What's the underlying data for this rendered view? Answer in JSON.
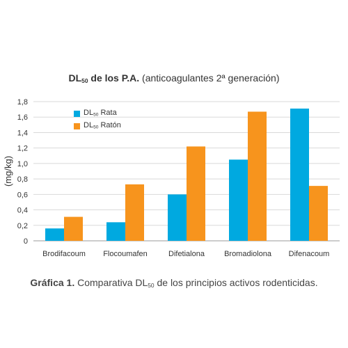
{
  "title": {
    "bold_prefix": "DL",
    "bold_sub": "50",
    "bold_suffix": " de los P.A.",
    "rest": " (anticoagulantes 2ª generación)"
  },
  "caption": {
    "bold": "Gráfica 1.",
    "pre": " Comparativa DL",
    "sub": "50",
    "post": " de los principios activos rodenticidas."
  },
  "colors": {
    "rata": "#00A9E0",
    "raton": "#F7941D",
    "grid": "#d9d9d9",
    "axis": "#999999"
  },
  "chart_data": {
    "type": "bar",
    "categories": [
      "Brodifacoum",
      "Flocoumafen",
      "Difetialona",
      "Bromadiolona",
      "Difenacoum"
    ],
    "series": [
      {
        "name_prefix": "DL",
        "name_sub": "50",
        "name_suffix": " Rata",
        "values": [
          0.16,
          0.24,
          0.6,
          1.05,
          1.71
        ]
      },
      {
        "name_prefix": "DL",
        "name_sub": "50",
        "name_suffix": " Ratón",
        "values": [
          0.31,
          0.73,
          1.22,
          1.67,
          0.71
        ]
      }
    ],
    "ylabel": "(mg/kg)",
    "ylim": [
      0,
      1.8
    ],
    "yticks": [
      "0",
      "0,2",
      "0,4",
      "0,6",
      "0,8",
      "1,0",
      "1,2",
      "1,4",
      "1,6",
      "1,8"
    ],
    "grid": true,
    "legend_position": "top-left"
  }
}
